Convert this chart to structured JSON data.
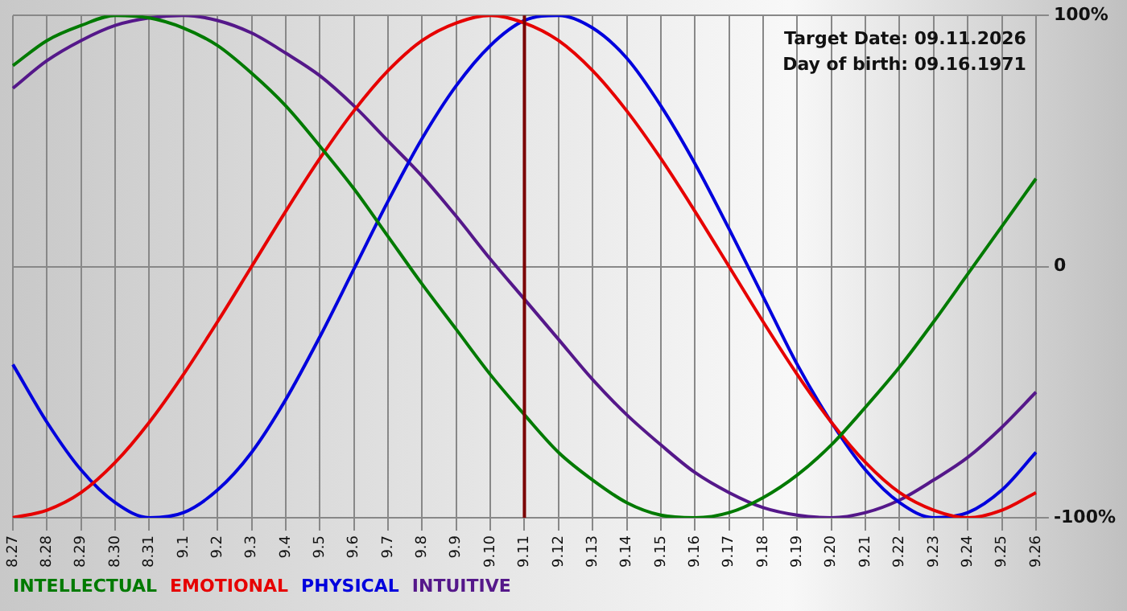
{
  "chart_data": {
    "type": "line",
    "categories": [
      "8.27",
      "8.28",
      "8.29",
      "8.30",
      "8.31",
      "9.1",
      "9.2",
      "9.3",
      "9.4",
      "9.5",
      "9.6",
      "9.7",
      "9.8",
      "9.9",
      "9.10",
      "9.11",
      "9.12",
      "9.13",
      "9.14",
      "9.15",
      "9.16",
      "9.17",
      "9.18",
      "9.19",
      "9.20",
      "9.21",
      "9.22",
      "9.23",
      "9.24",
      "9.25",
      "9.26"
    ],
    "series": [
      {
        "name": "INTELLECTUAL",
        "color": "#007a00",
        "values": [
          80,
          90,
          96,
          100,
          99,
          95,
          88,
          77,
          64,
          48,
          31,
          12,
          -7,
          -25,
          -43,
          -59,
          -74,
          -85,
          -94,
          -99,
          -100,
          -98,
          -92,
          -83,
          -71,
          -56,
          -40,
          -22,
          -3,
          16,
          35
        ]
      },
      {
        "name": "EMOTIONAL",
        "color": "#e60000",
        "values": [
          -100,
          -97,
          -90,
          -78,
          -62,
          -43,
          -22,
          0,
          22,
          43,
          62,
          78,
          90,
          97,
          100,
          97,
          90,
          78,
          62,
          43,
          22,
          0,
          -22,
          -43,
          -62,
          -78,
          -90,
          -97,
          -100,
          -97,
          -90
        ]
      },
      {
        "name": "PHYSICAL",
        "color": "#0000dd",
        "values": [
          -39,
          -62,
          -81,
          -94,
          -100,
          -98,
          -89,
          -74,
          -53,
          -28,
          -1,
          26,
          51,
          72,
          88,
          98,
          100,
          95,
          83,
          64,
          41,
          15,
          -12,
          -39,
          -62,
          -81,
          -94,
          -100,
          -98,
          -89,
          -74
        ]
      },
      {
        "name": "INTUITIVE",
        "color": "#55188a",
        "values": [
          71,
          82,
          90,
          96,
          99,
          100,
          98,
          93,
          85,
          76,
          64,
          50,
          36,
          20,
          3,
          -13,
          -29,
          -45,
          -59,
          -71,
          -82,
          -90,
          -96,
          -99,
          -100,
          -98,
          -93,
          -85,
          -76,
          -64,
          -50
        ]
      }
    ],
    "ylim": [
      -100,
      100
    ],
    "yticks": [
      {
        "value": -100,
        "label": "-100%"
      },
      0,
      {
        "value": 100,
        "label": "100%"
      }
    ],
    "grid": true,
    "legend": "bottom left",
    "marker": "none",
    "line_style": "solid",
    "ref_lines": [
      {
        "axis": "x",
        "value": "9.11",
        "color": "#7a0000"
      }
    ],
    "annotations": [
      "Target Date: 09.11.2026",
      "Day of birth: 09.16.1971"
    ]
  }
}
